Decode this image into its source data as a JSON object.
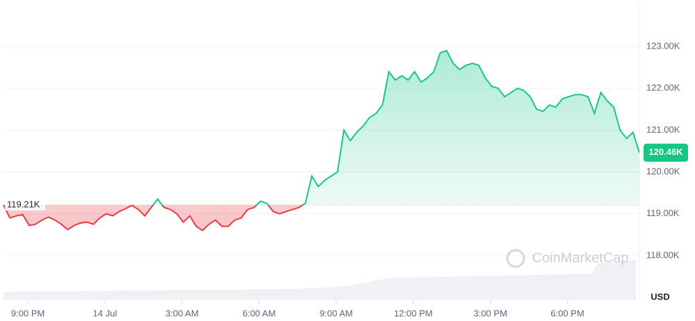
{
  "chart_data": {
    "type": "line",
    "x": [
      0,
      0.25,
      0.5,
      0.75,
      1,
      1.25,
      1.5,
      1.75,
      2,
      2.25,
      2.5,
      2.75,
      3,
      3.25,
      3.5,
      3.75,
      4,
      4.25,
      4.5,
      4.75,
      5,
      5.25,
      5.5,
      5.75,
      6,
      6.25,
      6.5,
      6.75,
      7,
      7.25,
      7.5,
      7.75,
      8,
      8.25,
      8.5,
      8.75,
      9,
      9.25,
      9.5,
      9.75,
      10,
      10.25,
      10.5,
      10.75,
      11,
      11.25,
      11.5,
      11.75,
      12,
      12.25,
      12.5,
      12.75,
      13,
      13.25,
      13.5,
      13.75,
      14,
      14.25,
      14.5,
      14.75,
      15,
      15.25,
      15.5,
      15.75,
      16,
      16.25,
      16.5,
      16.75,
      17,
      17.25,
      17.5,
      17.75,
      18,
      18.25,
      18.5,
      18.75,
      19,
      19.25,
      19.5,
      19.75,
      20,
      20.25,
      20.5,
      20.75,
      21,
      21.25,
      21.5,
      21.75,
      22,
      22.25,
      22.5,
      22.75,
      23,
      23.25,
      23.5,
      23.75,
      24,
      24.25,
      24.5,
      24.75
    ],
    "series": [
      {
        "name": "Price",
        "values": [
          119.21,
          118.9,
          118.95,
          118.98,
          118.72,
          118.75,
          118.85,
          118.92,
          118.85,
          118.75,
          118.62,
          118.72,
          118.78,
          118.8,
          118.75,
          118.9,
          119.0,
          118.95,
          119.05,
          119.12,
          119.2,
          119.1,
          118.95,
          119.15,
          119.35,
          119.15,
          119.1,
          119.0,
          118.8,
          118.95,
          118.7,
          118.6,
          118.75,
          118.85,
          118.7,
          118.7,
          118.85,
          118.9,
          119.1,
          119.15,
          119.3,
          119.25,
          119.05,
          119.0,
          119.05,
          119.1,
          119.15,
          119.25,
          119.9,
          119.65,
          119.8,
          119.9,
          120.0,
          121.0,
          120.75,
          120.95,
          121.1,
          121.3,
          121.4,
          121.6,
          122.4,
          122.2,
          122.3,
          122.2,
          122.4,
          122.15,
          122.25,
          122.4,
          122.85,
          122.9,
          122.6,
          122.45,
          122.55,
          122.6,
          122.55,
          122.25,
          122.05,
          122.0,
          121.8,
          121.9,
          122.0,
          121.95,
          121.8,
          121.5,
          121.45,
          121.6,
          121.55,
          121.75,
          121.8,
          121.85,
          121.85,
          121.8,
          121.4,
          121.9,
          121.7,
          121.55,
          121.0,
          120.8,
          120.95,
          120.46
        ],
        "value_labels": [
          null,
          null,
          null,
          null,
          null,
          null,
          null,
          null,
          null,
          null,
          null,
          null,
          null,
          null,
          null,
          null,
          null,
          null,
          null,
          null,
          null,
          null,
          null,
          null,
          null,
          null,
          null,
          null,
          null,
          null,
          null,
          null,
          null,
          null,
          null,
          null,
          null,
          null,
          null,
          null,
          null,
          null,
          null,
          null,
          null,
          null,
          null,
          null,
          null,
          null,
          null,
          null,
          null,
          null,
          null,
          null,
          null,
          null,
          null,
          null,
          null,
          null,
          null,
          null,
          null,
          null,
          null,
          null,
          null,
          null,
          null,
          null,
          null,
          null,
          null,
          null,
          null,
          null,
          null,
          null,
          null,
          null,
          null,
          null,
          null,
          null,
          null,
          null,
          null,
          null,
          null,
          null,
          null,
          null,
          null,
          null,
          null,
          null,
          null,
          "120.46K"
        ]
      }
    ],
    "up_color": "#16c784",
    "down_color": "#ea3943",
    "baseline": {
      "value": 119.21,
      "label": "119.21K"
    },
    "xlim": [
      0,
      24.75
    ],
    "xticks": [
      {
        "value": 0.95,
        "label": "9:00 PM"
      },
      {
        "value": 3.95,
        "label": "14 Jul"
      },
      {
        "value": 6.95,
        "label": "3:00 AM"
      },
      {
        "value": 9.95,
        "label": "6:00 AM"
      },
      {
        "value": 12.95,
        "label": "9:00 AM"
      },
      {
        "value": 15.95,
        "label": "12:00 PM"
      },
      {
        "value": 18.95,
        "label": "3:00 PM"
      },
      {
        "value": 21.95,
        "label": "6:00 PM"
      }
    ],
    "ylim": [
      117,
      124
    ],
    "yticks": [
      {
        "value": 118,
        "label": "118.00K"
      },
      {
        "value": 119,
        "label": "119.00K"
      },
      {
        "value": 120,
        "label": "120.00K"
      },
      {
        "value": 121,
        "label": "121.00K"
      },
      {
        "value": 122,
        "label": "122.00K"
      },
      {
        "value": 123,
        "label": "123.00K"
      }
    ],
    "y_axis_label": "USD",
    "watermark": "CoinMarketCap",
    "grid": true
  }
}
